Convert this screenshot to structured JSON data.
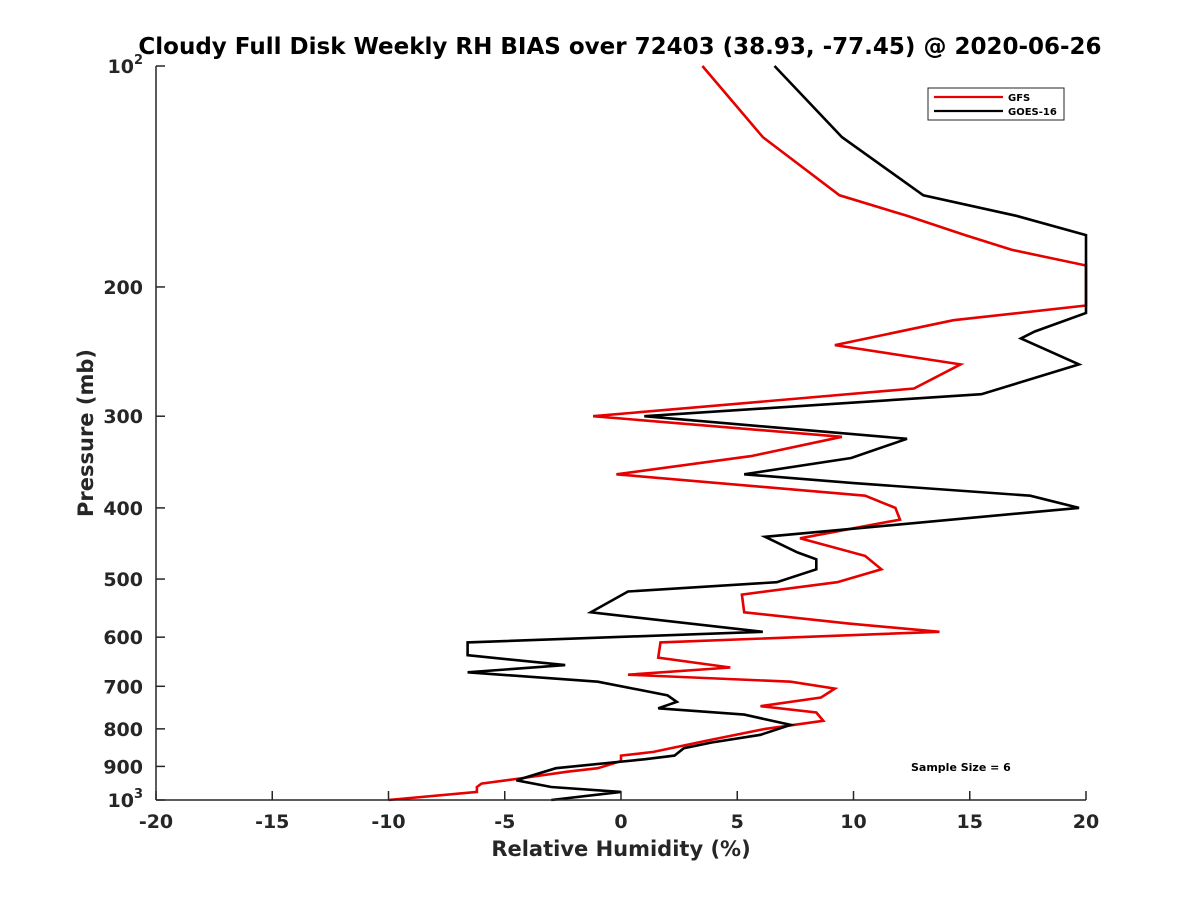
{
  "chart_data": {
    "type": "line",
    "title": "Cloudy Full Disk Weekly RH BIAS over 72403 (38.93, -77.45) @ 2020-06-26",
    "xlabel": "Relative Humidity (%)",
    "ylabel": "Pressure (mb)",
    "xlim": [
      -20,
      20
    ],
    "ylim": [
      100,
      1000
    ],
    "y_scale": "log",
    "y_reversed": true,
    "grid": false,
    "legend_position": "top-right",
    "x_ticks": [
      -20,
      -15,
      -10,
      -5,
      0,
      5,
      10,
      15,
      20
    ],
    "x_tick_labels": [
      "-20",
      "-15",
      "-10",
      "-5",
      "0",
      "5",
      "10",
      "15",
      "20"
    ],
    "y_ticks": [
      100,
      200,
      300,
      400,
      500,
      600,
      700,
      800,
      900,
      1000
    ],
    "y_tick_labels": [
      {
        "base": "10",
        "exp": "2"
      },
      {
        "base": "200",
        "exp": ""
      },
      {
        "base": "300",
        "exp": ""
      },
      {
        "base": "400",
        "exp": ""
      },
      {
        "base": "500",
        "exp": ""
      },
      {
        "base": "600",
        "exp": ""
      },
      {
        "base": "700",
        "exp": ""
      },
      {
        "base": "800",
        "exp": ""
      },
      {
        "base": "900",
        "exp": ""
      },
      {
        "base": "10",
        "exp": "3"
      }
    ],
    "annotation": "Sample Size = 6",
    "series": [
      {
        "name": "GFS",
        "color": "#e60000",
        "points": [
          [
            3.5,
            100
          ],
          [
            6.1,
            125
          ],
          [
            9.4,
            150
          ],
          [
            12.3,
            160
          ],
          [
            14.8,
            170
          ],
          [
            16.8,
            178
          ],
          [
            20.0,
            187
          ],
          [
            20.0,
            212
          ],
          [
            14.3,
            222
          ],
          [
            9.2,
            240
          ],
          [
            14.6,
            255
          ],
          [
            12.6,
            275
          ],
          [
            -1.2,
            300
          ],
          [
            9.5,
            320
          ],
          [
            5.6,
            340
          ],
          [
            -0.2,
            360
          ],
          [
            10.5,
            385
          ],
          [
            11.8,
            400
          ],
          [
            12.0,
            415
          ],
          [
            7.7,
            440
          ],
          [
            10.5,
            465
          ],
          [
            11.2,
            485
          ],
          [
            9.3,
            505
          ],
          [
            5.2,
            525
          ],
          [
            5.3,
            555
          ],
          [
            9.8,
            575
          ],
          [
            13.7,
            590
          ],
          [
            1.7,
            610
          ],
          [
            1.6,
            640
          ],
          [
            4.7,
            660
          ],
          [
            0.3,
            675
          ],
          [
            7.3,
            690
          ],
          [
            9.2,
            705
          ],
          [
            8.6,
            725
          ],
          [
            6.0,
            745
          ],
          [
            8.4,
            760
          ],
          [
            8.7,
            780
          ],
          [
            6.2,
            800
          ],
          [
            3.7,
            830
          ],
          [
            1.4,
            860
          ],
          [
            0.0,
            870
          ],
          [
            0.0,
            885
          ],
          [
            -1.0,
            905
          ],
          [
            -2.3,
            915
          ],
          [
            -4.4,
            935
          ],
          [
            -6.0,
            950
          ],
          [
            -6.2,
            960
          ],
          [
            -6.2,
            975
          ],
          [
            -10.0,
            1000
          ]
        ]
      },
      {
        "name": "GOES-16",
        "color": "#000000",
        "points": [
          [
            6.6,
            100
          ],
          [
            9.5,
            125
          ],
          [
            13.0,
            150
          ],
          [
            17.0,
            160
          ],
          [
            20.0,
            170
          ],
          [
            20.0,
            217
          ],
          [
            17.8,
            230
          ],
          [
            17.2,
            235
          ],
          [
            19.7,
            255
          ],
          [
            15.5,
            280
          ],
          [
            1.0,
            300
          ],
          [
            12.3,
            322
          ],
          [
            9.9,
            342
          ],
          [
            5.3,
            360
          ],
          [
            10.0,
            370
          ],
          [
            17.6,
            385
          ],
          [
            19.7,
            400
          ],
          [
            6.2,
            438
          ],
          [
            7.6,
            460
          ],
          [
            8.4,
            470
          ],
          [
            8.4,
            485
          ],
          [
            6.7,
            505
          ],
          [
            0.3,
            520
          ],
          [
            -1.3,
            555
          ],
          [
            6.1,
            590
          ],
          [
            -6.6,
            610
          ],
          [
            -6.6,
            635
          ],
          [
            -2.4,
            655
          ],
          [
            -6.6,
            670
          ],
          [
            -1.0,
            690
          ],
          [
            2.0,
            720
          ],
          [
            2.4,
            735
          ],
          [
            1.6,
            750
          ],
          [
            5.3,
            765
          ],
          [
            7.3,
            790
          ],
          [
            6.0,
            815
          ],
          [
            3.9,
            835
          ],
          [
            2.7,
            850
          ],
          [
            2.3,
            870
          ],
          [
            1.0,
            880
          ],
          [
            -2.8,
            905
          ],
          [
            -4.5,
            940
          ],
          [
            -3.0,
            960
          ],
          [
            0.0,
            975
          ],
          [
            -3.0,
            1000
          ]
        ]
      }
    ]
  }
}
